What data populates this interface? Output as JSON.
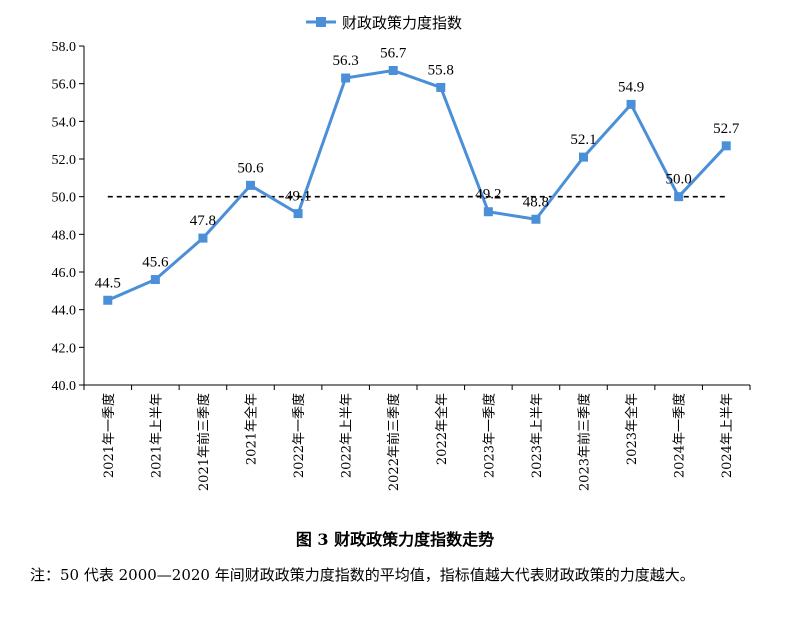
{
  "chart_data": {
    "type": "line",
    "legend_position": "top-center",
    "categories": [
      "2021年一季度",
      "2021年上半年",
      "2021年前三季度",
      "2021年全年",
      "2022年一季度",
      "2022年上半年",
      "2022年前三季度",
      "2022年全年",
      "2023年一季度",
      "2023年上半年",
      "2023年前三季度",
      "2023年全年",
      "2024年一季度",
      "2024年上半年"
    ],
    "series": [
      {
        "name": "财政政策力度指数",
        "values": [
          44.5,
          45.6,
          47.8,
          50.6,
          49.1,
          56.3,
          56.7,
          55.8,
          49.2,
          48.8,
          52.1,
          54.9,
          50.0,
          52.7
        ],
        "labels": [
          "44.5",
          "45.6",
          "47.8",
          "50.6",
          "49.1",
          "56.3",
          "56.7",
          "55.8",
          "49.2",
          "48.8",
          "52.1",
          "54.9",
          "50.0",
          "52.7"
        ],
        "color": "#4a8fd8"
      }
    ],
    "reference_line": {
      "value": 50.0,
      "style": "dashed",
      "color": "#000000"
    },
    "ylim": [
      40.0,
      58.0
    ],
    "yticks": [
      "40.0",
      "42.0",
      "44.0",
      "46.0",
      "48.0",
      "50.0",
      "52.0",
      "54.0",
      "56.0",
      "58.0"
    ],
    "grid": false
  },
  "caption": "图 3  财政政策力度指数走势",
  "note": "注：50 代表 2000—2020 年间财政政策力度指数的平均值，指标值越大代表财政政策的力度越大。"
}
